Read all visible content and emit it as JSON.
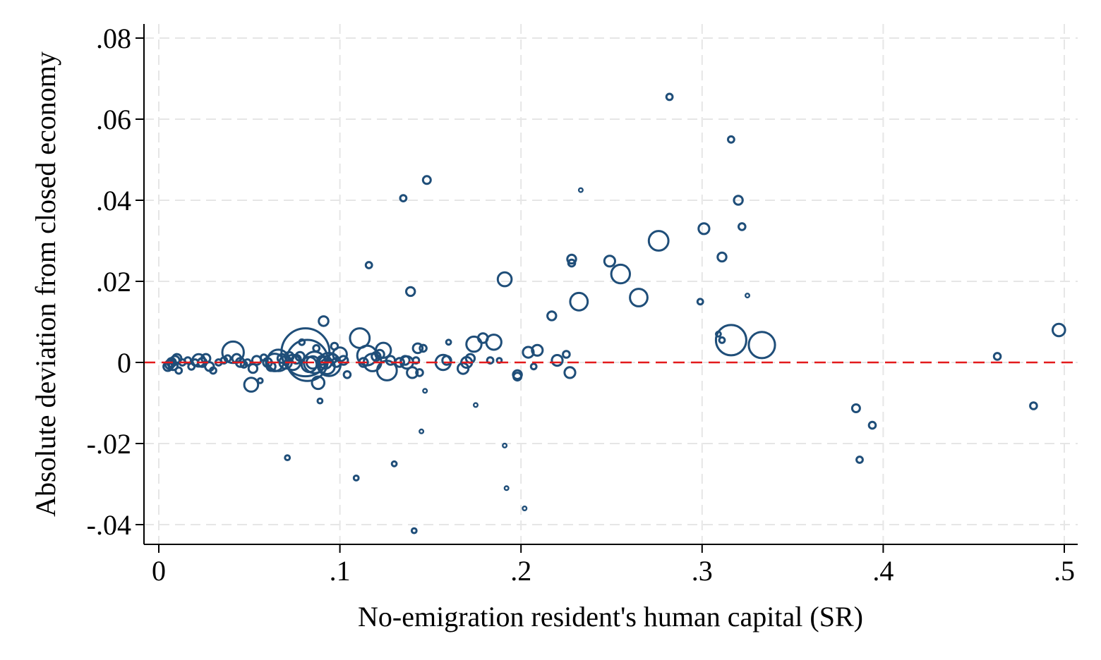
{
  "chart_data": {
    "type": "scatter",
    "title": "",
    "xlabel": "No-emigration resident's human capital (SR)",
    "ylabel": "Absolute deviation from closed economy",
    "xlim": [
      0,
      0.5
    ],
    "ylim": [
      -0.04,
      0.08
    ],
    "x_ticks": [
      {
        "value": 0,
        "label": "0"
      },
      {
        "value": 0.1,
        "label": ".1"
      },
      {
        "value": 0.2,
        "label": ".2"
      },
      {
        "value": 0.3,
        "label": ".3"
      },
      {
        "value": 0.4,
        "label": ".4"
      },
      {
        "value": 0.5,
        "label": ".5"
      }
    ],
    "y_ticks": [
      {
        "value": -0.04,
        "label": "-.04"
      },
      {
        "value": -0.02,
        "label": "-.02"
      },
      {
        "value": 0,
        "label": "0"
      },
      {
        "value": 0.02,
        "label": ".02"
      },
      {
        "value": 0.04,
        "label": ".04"
      },
      {
        "value": 0.06,
        "label": ".06"
      },
      {
        "value": 0.08,
        "label": ".08"
      }
    ],
    "grid": true,
    "grid_style": "dashed",
    "reference_line": {
      "y": 0,
      "color": "#e31a1c",
      "style": "dashed"
    },
    "marker": {
      "shape": "hollow-circle",
      "color": "#1f4e79",
      "size_encodes": "weight"
    },
    "points": [
      {
        "x": 0.005,
        "y": -0.001,
        "w": 1
      },
      {
        "x": 0.006,
        "y": -0.0005,
        "w": 1
      },
      {
        "x": 0.007,
        "y": 0.0,
        "w": 1
      },
      {
        "x": 0.008,
        "y": -0.0008,
        "w": 1
      },
      {
        "x": 0.009,
        "y": 0.0005,
        "w": 1
      },
      {
        "x": 0.01,
        "y": 0.001,
        "w": 1
      },
      {
        "x": 0.011,
        "y": -0.002,
        "w": 0.5
      },
      {
        "x": 0.013,
        "y": 0.0,
        "w": 0.5
      },
      {
        "x": 0.016,
        "y": 0.0005,
        "w": 0.5
      },
      {
        "x": 0.018,
        "y": -0.001,
        "w": 0.5
      },
      {
        "x": 0.02,
        "y": 0.0,
        "w": 0.5
      },
      {
        "x": 0.022,
        "y": 0.0005,
        "w": 2
      },
      {
        "x": 0.024,
        "y": 0.0,
        "w": 1
      },
      {
        "x": 0.026,
        "y": 0.001,
        "w": 1
      },
      {
        "x": 0.028,
        "y": -0.001,
        "w": 1
      },
      {
        "x": 0.03,
        "y": -0.002,
        "w": 0.5
      },
      {
        "x": 0.033,
        "y": 0.0,
        "w": 0.5
      },
      {
        "x": 0.036,
        "y": 0.0005,
        "w": 0.5
      },
      {
        "x": 0.038,
        "y": 0.001,
        "w": 0.5
      },
      {
        "x": 0.041,
        "y": 0.0025,
        "w": 6
      },
      {
        "x": 0.043,
        "y": 0.001,
        "w": 1
      },
      {
        "x": 0.045,
        "y": 0.0,
        "w": 1
      },
      {
        "x": 0.047,
        "y": -0.0005,
        "w": 0.5
      },
      {
        "x": 0.049,
        "y": 0.0,
        "w": 0.5
      },
      {
        "x": 0.051,
        "y": -0.0055,
        "w": 2.5
      },
      {
        "x": 0.052,
        "y": -0.0015,
        "w": 1
      },
      {
        "x": 0.054,
        "y": 0.0005,
        "w": 1
      },
      {
        "x": 0.056,
        "y": -0.0045,
        "w": 0.3
      },
      {
        "x": 0.058,
        "y": 0.0012,
        "w": 0.5
      },
      {
        "x": 0.06,
        "y": 0.0,
        "w": 1
      },
      {
        "x": 0.062,
        "y": -0.001,
        "w": 1
      },
      {
        "x": 0.064,
        "y": 0.0,
        "w": 4
      },
      {
        "x": 0.066,
        "y": 0.0005,
        "w": 6
      },
      {
        "x": 0.068,
        "y": 0.001,
        "w": 1
      },
      {
        "x": 0.07,
        "y": 0.0,
        "w": 2
      },
      {
        "x": 0.071,
        "y": -0.0235,
        "w": 0.3
      },
      {
        "x": 0.072,
        "y": 0.0015,
        "w": 1
      },
      {
        "x": 0.074,
        "y": 0.0,
        "w": 3
      },
      {
        "x": 0.076,
        "y": 0.0008,
        "w": 1
      },
      {
        "x": 0.078,
        "y": 0.0015,
        "w": 1
      },
      {
        "x": 0.079,
        "y": 0.005,
        "w": 0.4
      },
      {
        "x": 0.081,
        "y": 0.0025,
        "w": 30
      },
      {
        "x": 0.082,
        "y": 0.0005,
        "w": 22
      },
      {
        "x": 0.083,
        "y": -0.0005,
        "w": 3
      },
      {
        "x": 0.085,
        "y": 0.0,
        "w": 2
      },
      {
        "x": 0.086,
        "y": 0.0,
        "w": 6
      },
      {
        "x": 0.087,
        "y": 0.0035,
        "w": 0.5
      },
      {
        "x": 0.088,
        "y": -0.005,
        "w": 2
      },
      {
        "x": 0.089,
        "y": -0.0095,
        "w": 0.3
      },
      {
        "x": 0.09,
        "y": 0.0005,
        "w": 1
      },
      {
        "x": 0.091,
        "y": 0.0102,
        "w": 1.2
      },
      {
        "x": 0.092,
        "y": 0.0,
        "w": 2
      },
      {
        "x": 0.093,
        "y": -0.001,
        "w": 3
      },
      {
        "x": 0.094,
        "y": -0.0005,
        "w": 7
      },
      {
        "x": 0.096,
        "y": 0.001,
        "w": 1
      },
      {
        "x": 0.097,
        "y": 0.004,
        "w": 0.6
      },
      {
        "x": 0.098,
        "y": 0.0,
        "w": 1
      },
      {
        "x": 0.1,
        "y": 0.002,
        "w": 2.5
      },
      {
        "x": 0.102,
        "y": 0.0005,
        "w": 1
      },
      {
        "x": 0.104,
        "y": -0.003,
        "w": 0.6
      },
      {
        "x": 0.109,
        "y": -0.0285,
        "w": 0.3
      },
      {
        "x": 0.111,
        "y": 0.006,
        "w": 5
      },
      {
        "x": 0.113,
        "y": 0.0,
        "w": 1
      },
      {
        "x": 0.115,
        "y": 0.0017,
        "w": 5
      },
      {
        "x": 0.116,
        "y": 0.024,
        "w": 0.5
      },
      {
        "x": 0.118,
        "y": 0.0,
        "w": 4
      },
      {
        "x": 0.12,
        "y": 0.0015,
        "w": 1
      },
      {
        "x": 0.122,
        "y": 0.002,
        "w": 1
      },
      {
        "x": 0.124,
        "y": 0.003,
        "w": 3
      },
      {
        "x": 0.126,
        "y": -0.002,
        "w": 5
      },
      {
        "x": 0.128,
        "y": 0.0005,
        "w": 1
      },
      {
        "x": 0.13,
        "y": -0.025,
        "w": 0.3
      },
      {
        "x": 0.133,
        "y": 0.0,
        "w": 1
      },
      {
        "x": 0.135,
        "y": 0.0405,
        "w": 0.5
      },
      {
        "x": 0.136,
        "y": 0.0005,
        "w": 1
      },
      {
        "x": 0.137,
        "y": 0.0,
        "w": 2
      },
      {
        "x": 0.139,
        "y": 0.0175,
        "w": 1
      },
      {
        "x": 0.14,
        "y": -0.0025,
        "w": 1.5
      },
      {
        "x": 0.141,
        "y": -0.0415,
        "w": 0.3
      },
      {
        "x": 0.142,
        "y": 0.0005,
        "w": 0.5
      },
      {
        "x": 0.143,
        "y": 0.0035,
        "w": 1.2
      },
      {
        "x": 0.144,
        "y": -0.0025,
        "w": 0.6
      },
      {
        "x": 0.145,
        "y": -0.017,
        "w": 0.2
      },
      {
        "x": 0.146,
        "y": 0.0035,
        "w": 0.6
      },
      {
        "x": 0.147,
        "y": -0.007,
        "w": 0.2
      },
      {
        "x": 0.148,
        "y": 0.045,
        "w": 0.8
      },
      {
        "x": 0.157,
        "y": 0.0,
        "w": 3
      },
      {
        "x": 0.159,
        "y": 0.0005,
        "w": 1
      },
      {
        "x": 0.16,
        "y": 0.005,
        "w": 0.3
      },
      {
        "x": 0.168,
        "y": -0.0015,
        "w": 1.5
      },
      {
        "x": 0.17,
        "y": 0.0,
        "w": 1.5
      },
      {
        "x": 0.172,
        "y": 0.001,
        "w": 1
      },
      {
        "x": 0.174,
        "y": 0.0045,
        "w": 3
      },
      {
        "x": 0.175,
        "y": -0.0105,
        "w": 0.2
      },
      {
        "x": 0.179,
        "y": 0.006,
        "w": 1.2
      },
      {
        "x": 0.183,
        "y": 0.0005,
        "w": 0.5
      },
      {
        "x": 0.185,
        "y": 0.005,
        "w": 3
      },
      {
        "x": 0.188,
        "y": 0.0005,
        "w": 0.3
      },
      {
        "x": 0.191,
        "y": 0.0205,
        "w": 2.5
      },
      {
        "x": 0.191,
        "y": -0.0205,
        "w": 0.2
      },
      {
        "x": 0.192,
        "y": -0.031,
        "w": 0.2
      },
      {
        "x": 0.198,
        "y": -0.003,
        "w": 1
      },
      {
        "x": 0.198,
        "y": -0.0035,
        "w": 0.8
      },
      {
        "x": 0.202,
        "y": -0.036,
        "w": 0.2
      },
      {
        "x": 0.204,
        "y": 0.0025,
        "w": 1.5
      },
      {
        "x": 0.207,
        "y": -0.001,
        "w": 0.4
      },
      {
        "x": 0.209,
        "y": 0.003,
        "w": 1.5
      },
      {
        "x": 0.217,
        "y": 0.0115,
        "w": 1
      },
      {
        "x": 0.22,
        "y": 0.0005,
        "w": 1.5
      },
      {
        "x": 0.225,
        "y": 0.002,
        "w": 0.6
      },
      {
        "x": 0.227,
        "y": -0.0025,
        "w": 1.5
      },
      {
        "x": 0.228,
        "y": 0.0255,
        "w": 1
      },
      {
        "x": 0.228,
        "y": 0.0245,
        "w": 0.6
      },
      {
        "x": 0.232,
        "y": 0.015,
        "w": 4
      },
      {
        "x": 0.233,
        "y": 0.0425,
        "w": 0.2
      },
      {
        "x": 0.249,
        "y": 0.025,
        "w": 1.5
      },
      {
        "x": 0.255,
        "y": 0.0218,
        "w": 4.5
      },
      {
        "x": 0.265,
        "y": 0.016,
        "w": 4
      },
      {
        "x": 0.276,
        "y": 0.03,
        "w": 5
      },
      {
        "x": 0.282,
        "y": 0.0655,
        "w": 0.5
      },
      {
        "x": 0.299,
        "y": 0.015,
        "w": 0.4
      },
      {
        "x": 0.301,
        "y": 0.033,
        "w": 1.5
      },
      {
        "x": 0.309,
        "y": 0.007,
        "w": 0.3
      },
      {
        "x": 0.311,
        "y": 0.026,
        "w": 1
      },
      {
        "x": 0.311,
        "y": 0.0055,
        "w": 0.4
      },
      {
        "x": 0.316,
        "y": 0.0055,
        "w": 12
      },
      {
        "x": 0.316,
        "y": 0.055,
        "w": 0.5
      },
      {
        "x": 0.32,
        "y": 0.04,
        "w": 1
      },
      {
        "x": 0.322,
        "y": 0.0335,
        "w": 0.6
      },
      {
        "x": 0.325,
        "y": 0.0165,
        "w": 0.2
      },
      {
        "x": 0.333,
        "y": 0.0043,
        "w": 9
      },
      {
        "x": 0.385,
        "y": -0.0113,
        "w": 0.8
      },
      {
        "x": 0.387,
        "y": -0.024,
        "w": 0.5
      },
      {
        "x": 0.394,
        "y": -0.0155,
        "w": 0.6
      },
      {
        "x": 0.463,
        "y": 0.0015,
        "w": 0.6
      },
      {
        "x": 0.483,
        "y": -0.0107,
        "w": 0.6
      },
      {
        "x": 0.497,
        "y": 0.008,
        "w": 2
      }
    ]
  }
}
